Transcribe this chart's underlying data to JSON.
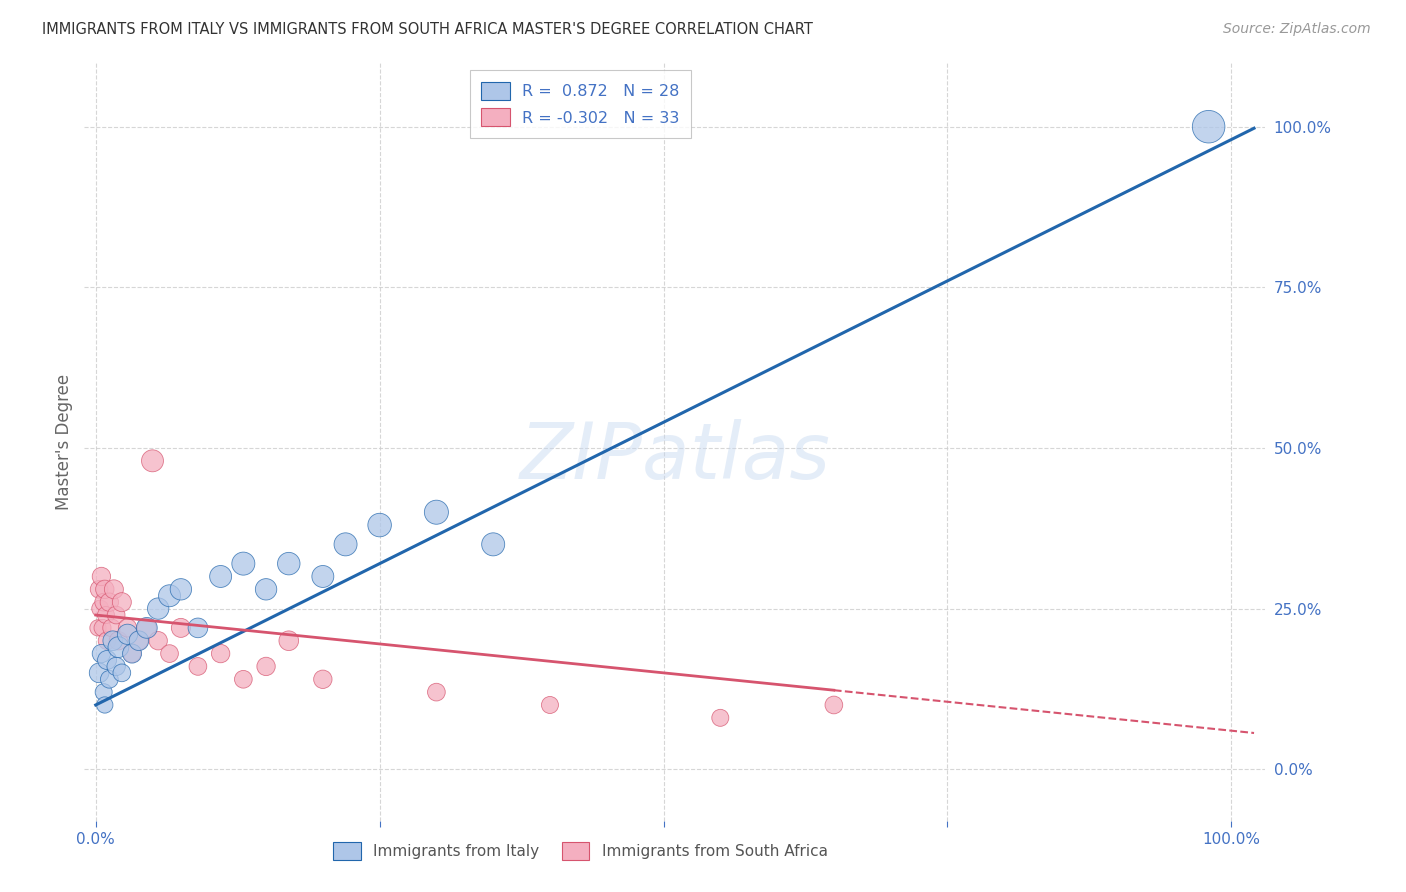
{
  "title": "IMMIGRANTS FROM ITALY VS IMMIGRANTS FROM SOUTH AFRICA MASTER'S DEGREE CORRELATION CHART",
  "source": "Source: ZipAtlas.com",
  "ylabel": "Master's Degree",
  "watermark": "ZIPatlas",
  "legend_italy_R": "0.872",
  "legend_italy_N": "28",
  "legend_sa_R": "-0.302",
  "legend_sa_N": "33",
  "italy_color": "#aec6e8",
  "sa_color": "#f4afc0",
  "italy_line_color": "#2166ac",
  "sa_line_color": "#d6546e",
  "italy_scatter_x": [
    0.3,
    0.5,
    0.7,
    0.8,
    1.0,
    1.2,
    1.5,
    1.8,
    2.0,
    2.3,
    2.8,
    3.2,
    3.8,
    4.5,
    5.5,
    6.5,
    7.5,
    9.0,
    11.0,
    13.0,
    15.0,
    17.0,
    20.0,
    22.0,
    25.0,
    30.0,
    35.0,
    98.0
  ],
  "italy_scatter_y": [
    15.0,
    18.0,
    12.0,
    10.0,
    17.0,
    14.0,
    20.0,
    16.0,
    19.0,
    15.0,
    21.0,
    18.0,
    20.0,
    22.0,
    25.0,
    27.0,
    28.0,
    22.0,
    30.0,
    32.0,
    28.0,
    32.0,
    30.0,
    35.0,
    38.0,
    40.0,
    35.0,
    100.0
  ],
  "italy_marker_sizes": [
    80,
    70,
    60,
    55,
    75,
    65,
    80,
    70,
    90,
    65,
    85,
    75,
    80,
    90,
    95,
    100,
    95,
    80,
    100,
    110,
    95,
    105,
    100,
    110,
    115,
    120,
    110,
    220
  ],
  "sa_scatter_x": [
    0.2,
    0.3,
    0.4,
    0.5,
    0.6,
    0.7,
    0.8,
    0.9,
    1.0,
    1.2,
    1.4,
    1.6,
    1.8,
    2.0,
    2.3,
    2.8,
    3.2,
    3.8,
    4.5,
    5.0,
    5.5,
    6.5,
    7.5,
    9.0,
    11.0,
    13.0,
    15.0,
    17.0,
    20.0,
    30.0,
    40.0,
    55.0,
    65.0
  ],
  "sa_scatter_y": [
    22.0,
    28.0,
    25.0,
    30.0,
    22.0,
    26.0,
    28.0,
    24.0,
    20.0,
    26.0,
    22.0,
    28.0,
    24.0,
    20.0,
    26.0,
    22.0,
    18.0,
    20.0,
    22.0,
    48.0,
    20.0,
    18.0,
    22.0,
    16.0,
    18.0,
    14.0,
    16.0,
    20.0,
    14.0,
    12.0,
    10.0,
    8.0,
    10.0
  ],
  "sa_marker_sizes": [
    55,
    65,
    60,
    70,
    60,
    65,
    70,
    60,
    65,
    70,
    65,
    75,
    65,
    70,
    75,
    70,
    65,
    70,
    75,
    100,
    70,
    65,
    75,
    65,
    70,
    65,
    70,
    80,
    70,
    65,
    60,
    60,
    65
  ],
  "ytick_labels": [
    "0.0%",
    "25.0%",
    "50.0%",
    "75.0%",
    "100.0%"
  ],
  "ytick_values": [
    0,
    25,
    50,
    75,
    100
  ],
  "xtick_values": [
    0,
    25,
    50,
    75,
    100
  ],
  "grid_color": "#cccccc",
  "background_color": "#ffffff",
  "title_color": "#333333",
  "axis_label_color": "#666666",
  "tick_label_color": "#4472c4",
  "italy_line_intercept": 10.0,
  "italy_line_slope": 0.88,
  "sa_line_intercept": 24.0,
  "sa_line_slope": -0.18
}
